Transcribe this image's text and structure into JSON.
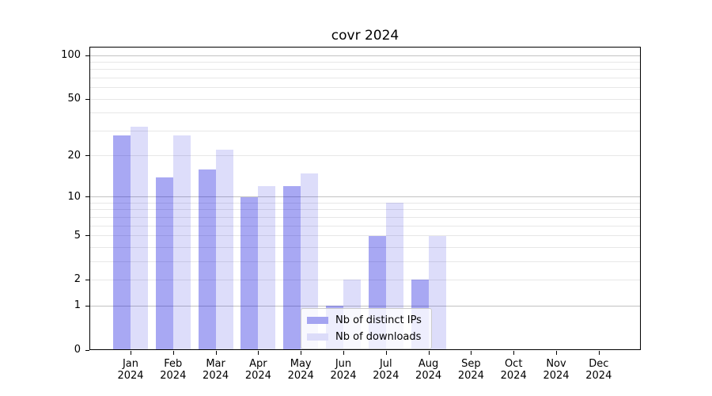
{
  "title": "covr 2024",
  "colors": {
    "bar_distinct_ips": "rgba(0,0,220,0.34)",
    "bar_downloads": "rgba(0,0,220,0.135)",
    "grid_major": "#c2c2c2",
    "grid_minor": "#e7e7e7",
    "spine": "#000000",
    "legend_border": "#cccccc"
  },
  "legend": {
    "items": [
      {
        "label": "Nb of distinct IPs",
        "swatch": "#a4a4f1"
      },
      {
        "label": "Nb of downloads",
        "swatch": "#dcdcf9"
      }
    ]
  },
  "y_axis": {
    "ticks": [
      {
        "value": 100,
        "label": "100"
      },
      {
        "value": 50,
        "label": "50"
      },
      {
        "value": 20,
        "label": "20"
      },
      {
        "value": 10,
        "label": "10"
      },
      {
        "value": 5,
        "label": "5"
      },
      {
        "value": 2,
        "label": "2"
      },
      {
        "value": 1,
        "label": "1"
      },
      {
        "value": 0,
        "label": "0"
      }
    ]
  },
  "x_axis": {
    "labels": [
      {
        "month": "Jan",
        "year": "2024"
      },
      {
        "month": "Feb",
        "year": "2024"
      },
      {
        "month": "Mar",
        "year": "2024"
      },
      {
        "month": "Apr",
        "year": "2024"
      },
      {
        "month": "May",
        "year": "2024"
      },
      {
        "month": "Jun",
        "year": "2024"
      },
      {
        "month": "Jul",
        "year": "2024"
      },
      {
        "month": "Aug",
        "year": "2024"
      },
      {
        "month": "Sep",
        "year": "2024"
      },
      {
        "month": "Oct",
        "year": "2024"
      },
      {
        "month": "Nov",
        "year": "2024"
      },
      {
        "month": "Dec",
        "year": "2024"
      }
    ]
  },
  "chart_data": {
    "type": "bar",
    "title": "covr 2024",
    "categories": [
      "Jan 2024",
      "Feb 2024",
      "Mar 2024",
      "Apr 2024",
      "May 2024",
      "Jun 2024",
      "Jul 2024",
      "Aug 2024",
      "Sep 2024",
      "Oct 2024",
      "Nov 2024",
      "Dec 2024"
    ],
    "series": [
      {
        "name": "Nb of distinct IPs",
        "values": [
          28,
          14,
          16,
          10,
          12,
          1,
          5,
          2,
          0,
          0,
          0,
          0
        ]
      },
      {
        "name": "Nb of downloads",
        "values": [
          32,
          28,
          22,
          12,
          15,
          2,
          9,
          5,
          0,
          0,
          0,
          0
        ]
      }
    ],
    "xlabel": "",
    "ylabel": "",
    "yscale": "log1p",
    "ylim": [
      0,
      115
    ],
    "yticks": [
      0,
      1,
      2,
      5,
      10,
      20,
      50,
      100
    ],
    "major_gridlines": [
      1,
      10,
      100
    ],
    "minor_gridlines": [
      2,
      3,
      4,
      5,
      6,
      7,
      8,
      9,
      20,
      30,
      40,
      50,
      60,
      70,
      80,
      90
    ],
    "grid": "horizontal",
    "legend_position": "lower center"
  }
}
